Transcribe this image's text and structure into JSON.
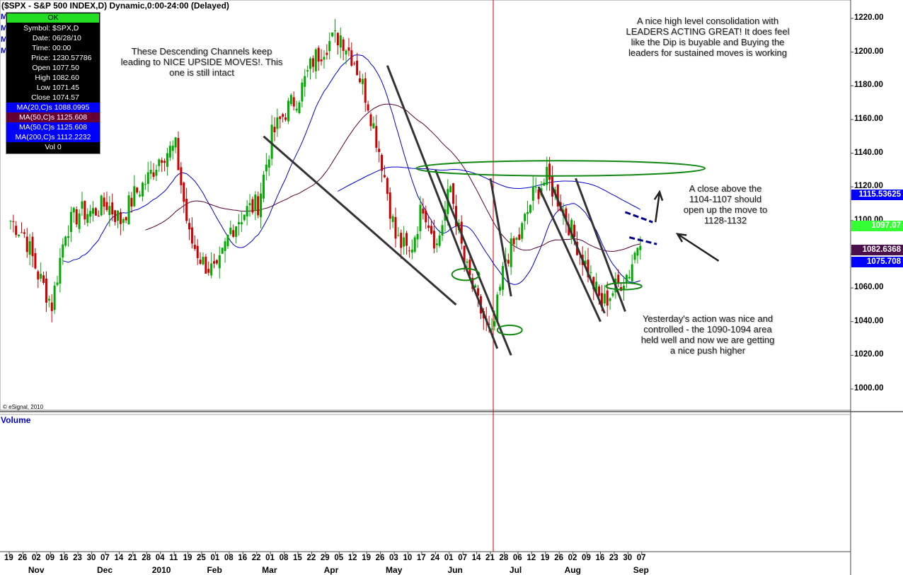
{
  "header": {
    "title": "($SPX - S&P 500 INDEX,D) Dynamic,0:00-24:00 (Delayed)"
  },
  "data_window": {
    "status": "OK",
    "rows": [
      {
        "k": "Symbol:",
        "v": "$SPX,D"
      },
      {
        "k": "Date:",
        "v": "06/28/10"
      },
      {
        "k": "Time:",
        "v": "00:00"
      },
      {
        "k": "Price:",
        "v": "1230.57786"
      },
      {
        "k": "Open",
        "v": "1077.50"
      },
      {
        "k": "High",
        "v": "1082.60"
      },
      {
        "k": "Low",
        "v": "1071.45"
      },
      {
        "k": "Close",
        "v": "1074.57"
      }
    ],
    "ma_rows": [
      {
        "text": "MA(20,C)s 1088.0995",
        "color": "#0000ff"
      },
      {
        "text": "MA(50,C)s 1125.608",
        "color": "#660033"
      },
      {
        "text": "MA(50,C)s 1125.608",
        "color": "#0000ff"
      },
      {
        "text": "MA(200,C)s 1112.2232",
        "color": "#0000ff"
      }
    ],
    "vol": "Vol 0"
  },
  "left_markers": [
    "M",
    "M",
    "M",
    "M"
  ],
  "annotations": {
    "channels": "These Descending  Channels keep leading to NICE UPSIDE MOVES!. This one is still intact",
    "consolidation": "A nice high level consolidation with LEADERS ACTING GREAT!  It does feel like the Dip is buyable and Buying the leaders for sustained moves is working",
    "close_above": "A close above the 1104-1107 should open up the move to 1128-1132",
    "yesterday": "Yesterday's action was nice and controlled - the 1090-1094 area held well and now we are getting a nice push higher"
  },
  "price_boxes": [
    {
      "label": "1115.53625",
      "value": 1115.54,
      "bg": "#0000ff",
      "fg": "#ffffff"
    },
    {
      "label": "1097.07",
      "value": 1097.07,
      "bg": "#33ff33",
      "fg": "#ffffff"
    },
    {
      "label": "1082.6368",
      "value": 1082.64,
      "bg": "#4b0f4b",
      "fg": "#ffffff"
    },
    {
      "label": "1075.708",
      "value": 1075.71,
      "bg": "#0000ff",
      "fg": "#ffffff"
    }
  ],
  "volume_label": "Volume",
  "copyright": "© eSignal, 2010",
  "colors": {
    "up": "#00aa00",
    "down": "#cc0000",
    "ma20": "#0000cc",
    "ma50": "#550033",
    "ma200": "#0000cc",
    "trendline": "#333333",
    "ellipse": "#118811",
    "channel": "#000088",
    "cursor_line": "#cc0000"
  },
  "chart_data": {
    "type": "candlestick",
    "title": "($SPX - S&P 500 INDEX,D) Dynamic,0:00-24:00 (Delayed)",
    "ylim": [
      990,
      1228
    ],
    "y_ticks": [
      1000,
      1020,
      1040,
      1060,
      1080,
      1100,
      1120,
      1140,
      1160,
      1180,
      1200,
      1220
    ],
    "y_tick_labels": [
      "1000.00",
      "1020.00",
      "1040.00",
      "1060.00",
      "1080.00",
      "1100.00",
      "1120.00",
      "1140.00",
      "1160.00",
      "1180.00",
      "1200.00",
      "1220.00"
    ],
    "x_date_labels": [
      "19",
      "26",
      "02",
      "09",
      "16",
      "23",
      "30",
      "07",
      "14",
      "21",
      "28",
      "04",
      "11",
      "19",
      "25",
      "01",
      "08",
      "16",
      "22",
      "01",
      "08",
      "15",
      "22",
      "29",
      "05",
      "12",
      "19",
      "26",
      "03",
      "10",
      "17",
      "24",
      "01",
      "07",
      "14",
      "21",
      "28",
      "06",
      "12",
      "19",
      "26",
      "02",
      "09",
      "16",
      "23",
      "30",
      "07"
    ],
    "x_month_labels": [
      {
        "label": "Nov",
        "week": 2
      },
      {
        "label": "Dec",
        "week": 7
      },
      {
        "label": "2010",
        "week": 11
      },
      {
        "label": "Feb",
        "week": 15
      },
      {
        "label": "Mar",
        "week": 19
      },
      {
        "label": "Apr",
        "week": 23.5
      },
      {
        "label": "May",
        "week": 28
      },
      {
        "label": "Jun",
        "week": 32.5
      },
      {
        "label": "Jul",
        "week": 37
      },
      {
        "label": "Aug",
        "week": 41
      },
      {
        "label": "Sep",
        "week": 46
      }
    ],
    "weekly_close": [
      1100,
      1092,
      1068,
      1050,
      1095,
      1105,
      1105,
      1110,
      1100,
      1115,
      1125,
      1140,
      1143,
      1090,
      1075,
      1068,
      1095,
      1105,
      1110,
      1150,
      1165,
      1175,
      1195,
      1205,
      1210,
      1195,
      1170,
      1135,
      1090,
      1080,
      1110,
      1085,
      1120,
      1075,
      1050,
      1030,
      1078,
      1090,
      1115,
      1125,
      1110,
      1090,
      1070,
      1050,
      1060,
      1070,
      1097
    ],
    "candle_rule": "weekly_close values are the anchors; daily candles are interpolated between them",
    "moving_averages": [
      {
        "name": "MA(20,C)s",
        "last": 1088.0995
      },
      {
        "name": "MA(50,C)s",
        "last": 1125.608
      },
      {
        "name": "MA(200,C)s",
        "last": 1112.2232
      }
    ],
    "cursor_date": "06/28/10",
    "trendlines": [
      {
        "from": {
          "week": 18.5,
          "price": 1150
        },
        "to": {
          "week": 32.5,
          "price": 1050
        }
      },
      {
        "from": {
          "week": 27.5,
          "price": 1192
        },
        "to": {
          "week": 35.5,
          "price": 1024
        }
      },
      {
        "from": {
          "week": 31,
          "price": 1130
        },
        "to": {
          "week": 36.5,
          "price": 1020
        }
      },
      {
        "from": {
          "week": 35,
          "price": 1125
        },
        "to": {
          "week": 36.5,
          "price": 1055
        }
      },
      {
        "from": {
          "week": 38.5,
          "price": 1120
        },
        "to": {
          "week": 43,
          "price": 1040
        }
      },
      {
        "from": {
          "week": 39.5,
          "price": 1120
        },
        "to": {
          "week": 43.3,
          "price": 1045
        }
      },
      {
        "from": {
          "week": 41.2,
          "price": 1125
        },
        "to": {
          "week": 44.8,
          "price": 1046
        }
      }
    ],
    "ellipses": [
      {
        "week": 40.1,
        "price": 1131,
        "rx_weeks": 10.5,
        "ry_price": 4.5
      },
      {
        "week": 33.2,
        "price": 1068,
        "rx_weeks": 1.0,
        "ry_price": 3.5
      },
      {
        "week": 36.4,
        "price": 1035,
        "rx_weeks": 0.9,
        "ry_price": 2.8
      },
      {
        "week": 44.7,
        "price": 1061,
        "rx_weeks": 1.3,
        "ry_price": 2.0
      }
    ],
    "channel_lines": [
      {
        "from": {
          "week": 44.8,
          "price": 1105
        },
        "to": {
          "week": 46.8,
          "price": 1099
        }
      },
      {
        "from": {
          "week": 45.1,
          "price": 1090
        },
        "to": {
          "week": 47.1,
          "price": 1086
        }
      }
    ],
    "arrows": [
      {
        "from": {
          "week": 47.0,
          "price": 1099
        },
        "to": {
          "week": 47.3,
          "price": 1117
        }
      },
      {
        "from": {
          "week": 51.6,
          "price": 1076
        },
        "to": {
          "week": 48.6,
          "price": 1092
        }
      }
    ],
    "grid": false,
    "legend": "none"
  }
}
